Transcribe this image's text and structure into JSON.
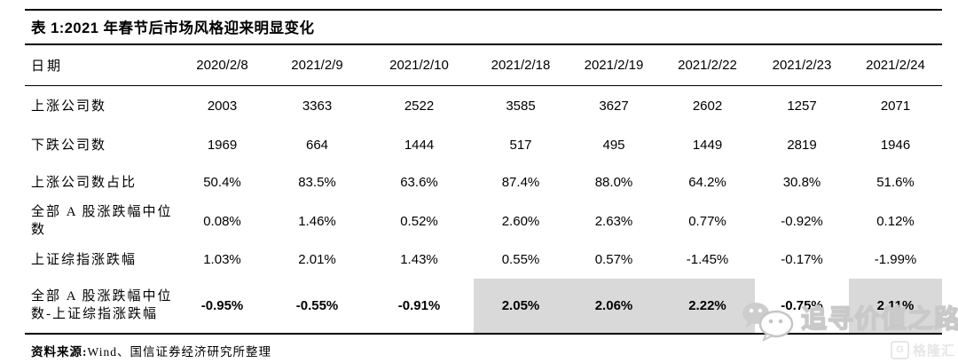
{
  "title": "表 1:2021 年春节后市场风格迎来明显变化",
  "table": {
    "columns": [
      "日期",
      "2020/2/8",
      "2021/2/9",
      "2021/2/10",
      "2021/2/18",
      "2021/2/19",
      "2021/2/22",
      "2021/2/23",
      "2021/2/24"
    ],
    "rows": [
      {
        "label": "上涨公司数",
        "values": [
          "2003",
          "3363",
          "2522",
          "3585",
          "3627",
          "2602",
          "1257",
          "2071"
        ],
        "bold": false,
        "highlight": []
      },
      {
        "label": "下跌公司数",
        "values": [
          "1969",
          "664",
          "1444",
          "517",
          "495",
          "1449",
          "2819",
          "1946"
        ],
        "bold": false,
        "highlight": []
      },
      {
        "label": "上涨公司数占比",
        "values": [
          "50.4%",
          "83.5%",
          "63.6%",
          "87.4%",
          "88.0%",
          "64.2%",
          "30.8%",
          "51.6%"
        ],
        "bold": false,
        "highlight": []
      },
      {
        "label": "全部 A 股涨跌幅中位数",
        "values": [
          "0.08%",
          "1.46%",
          "0.52%",
          "2.60%",
          "2.63%",
          "0.77%",
          "-0.92%",
          "0.12%"
        ],
        "bold": false,
        "highlight": []
      },
      {
        "label": "上证综指涨跌幅",
        "values": [
          "1.03%",
          "2.01%",
          "1.43%",
          "0.55%",
          "0.57%",
          "-1.45%",
          "-0.17%",
          "-1.99%"
        ],
        "bold": false,
        "highlight": []
      },
      {
        "label": "全部 A 股涨跌幅中位数-上证综指涨跌幅",
        "values": [
          "-0.95%",
          "-0.55%",
          "-0.91%",
          "2.05%",
          "2.06%",
          "2.22%",
          "-0.75%",
          "2.11%"
        ],
        "bold": true,
        "highlight": [
          3,
          4,
          5,
          7
        ]
      }
    ]
  },
  "footer": {
    "source_label": "资料来源:",
    "source_text": "Wind、国信证券经济研究所整理"
  },
  "watermark": {
    "text": "追寻价值之路"
  },
  "brand": {
    "logo_text": "格隆汇",
    "logo_letter": "G"
  },
  "colors": {
    "highlight": "#d9d9d9",
    "line": "#000000",
    "watermark_gray": "#c9c9c9",
    "logo_gray": "#e6e6e6"
  }
}
